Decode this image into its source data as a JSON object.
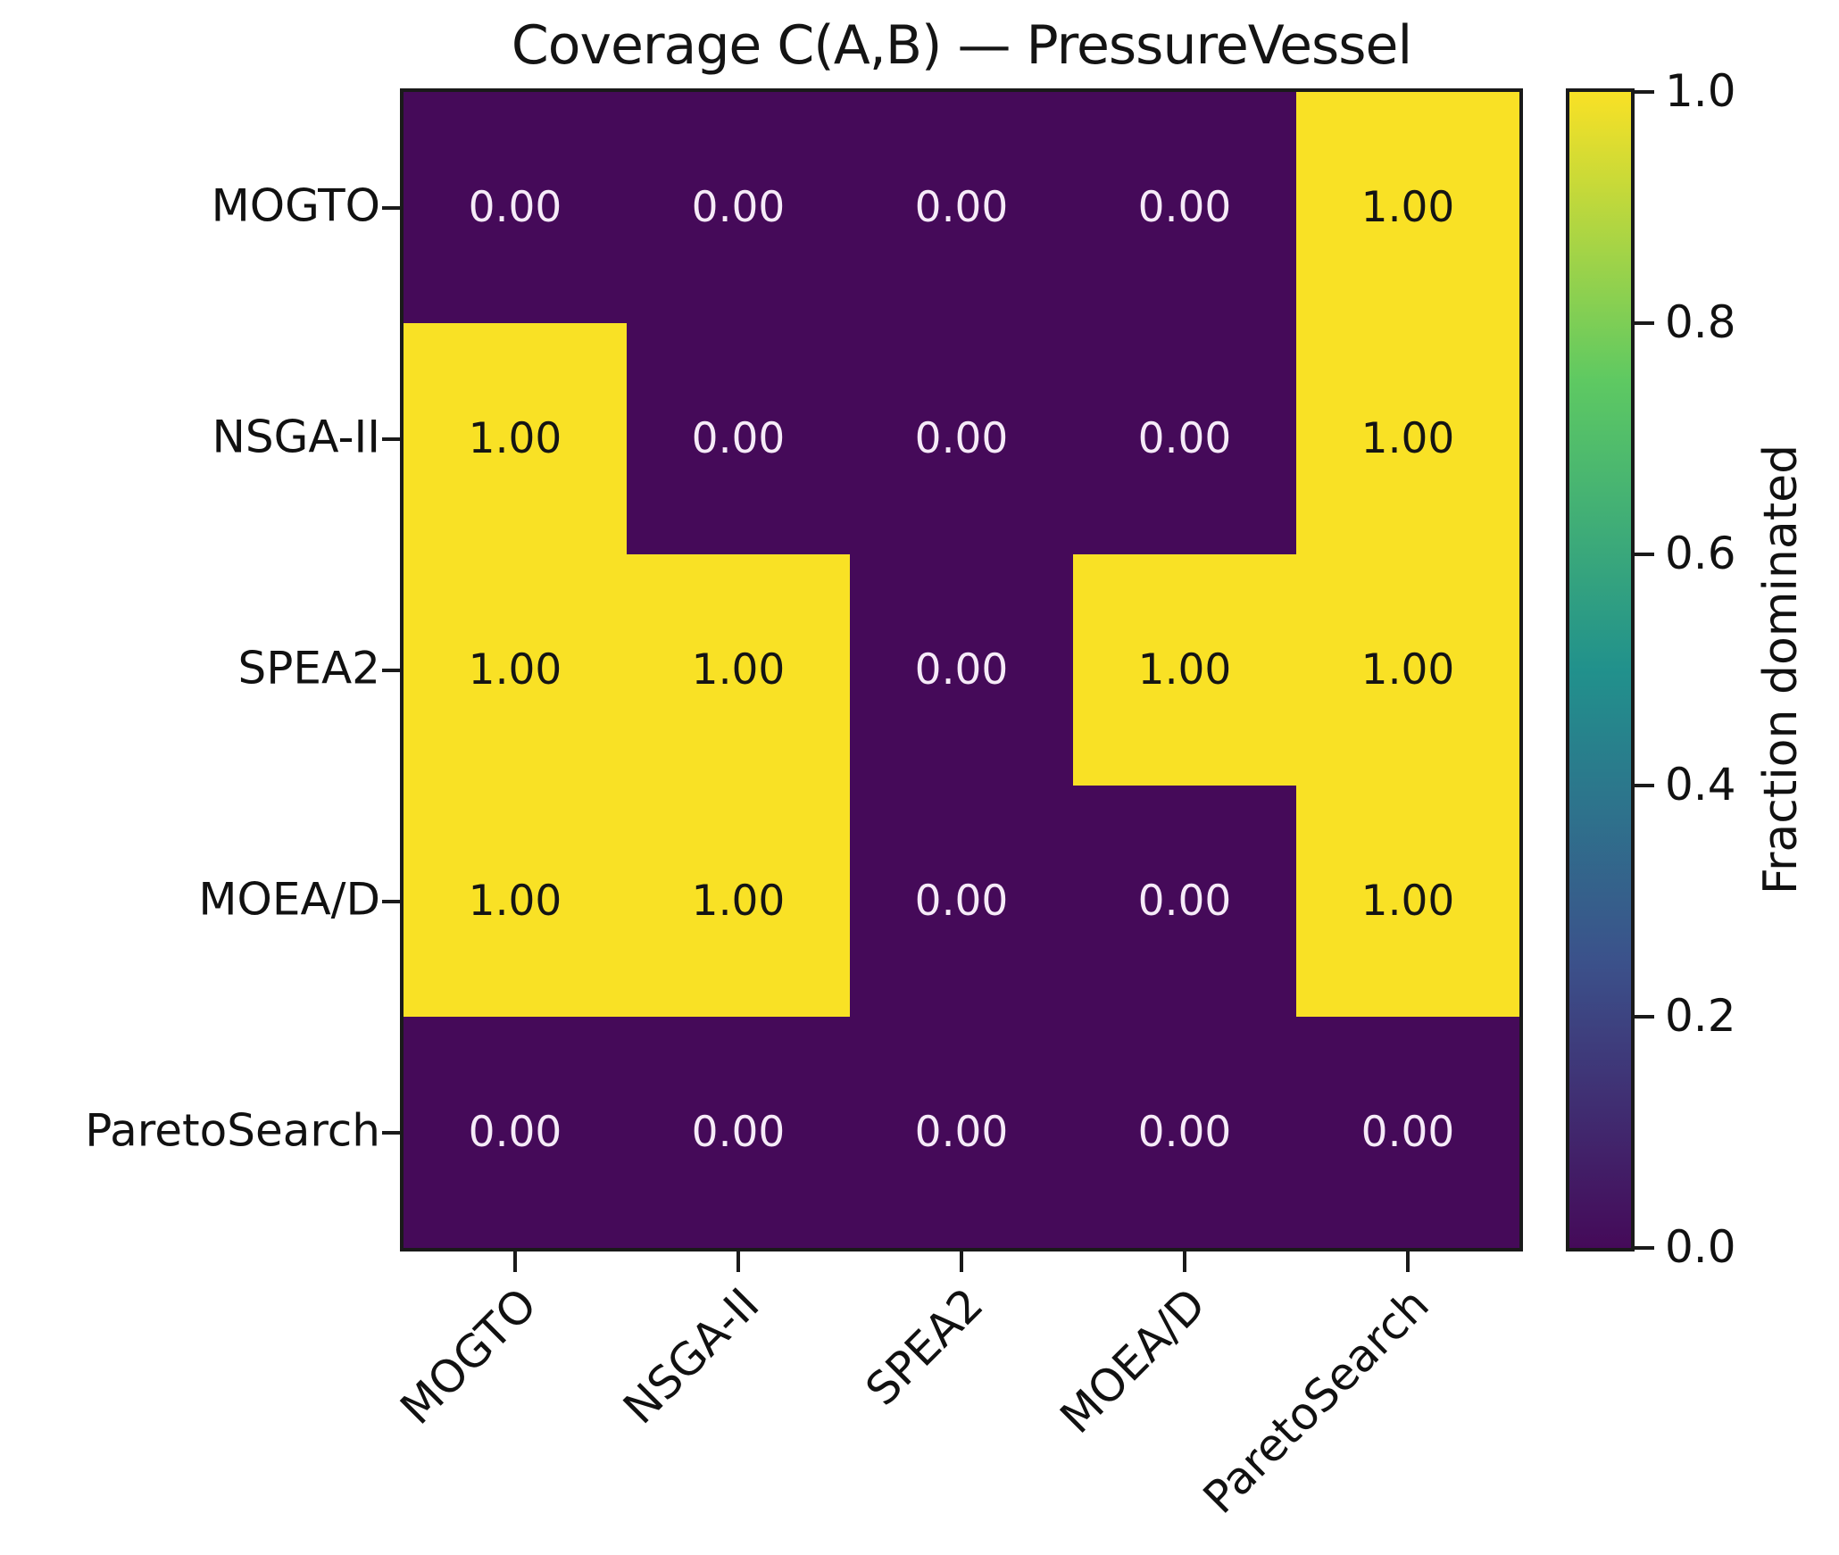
{
  "chart_data": {
    "type": "heatmap",
    "title": "Coverage C(A,B) — PressureVessel",
    "rows": [
      "MOGTO",
      "NSGA-II",
      "SPEA2",
      "MOEA/D",
      "ParetoSearch"
    ],
    "cols": [
      "MOGTO",
      "NSGA-II",
      "SPEA2",
      "MOEA/D",
      "ParetoSearch"
    ],
    "values": [
      [
        0.0,
        0.0,
        0.0,
        0.0,
        1.0
      ],
      [
        1.0,
        0.0,
        0.0,
        0.0,
        1.0
      ],
      [
        1.0,
        1.0,
        0.0,
        1.0,
        1.0
      ],
      [
        1.0,
        1.0,
        0.0,
        0.0,
        1.0
      ],
      [
        0.0,
        0.0,
        0.0,
        0.0,
        0.0
      ]
    ],
    "cell_labels": [
      [
        "0.00",
        "0.00",
        "0.00",
        "0.00",
        "1.00"
      ],
      [
        "1.00",
        "0.00",
        "0.00",
        "0.00",
        "1.00"
      ],
      [
        "1.00",
        "1.00",
        "0.00",
        "1.00",
        "1.00"
      ],
      [
        "1.00",
        "1.00",
        "0.00",
        "0.00",
        "1.00"
      ],
      [
        "0.00",
        "0.00",
        "0.00",
        "0.00",
        "0.00"
      ]
    ],
    "value_range": [
      0.0,
      1.0
    ],
    "colorbar": {
      "label": "Fraction dominated",
      "tick_labels": [
        "1.0",
        "0.8",
        "0.6",
        "0.4",
        "0.2",
        "0.0"
      ],
      "tick_values": [
        1.0,
        0.8,
        0.6,
        0.4,
        0.2,
        0.0
      ],
      "position": "right",
      "colormap": "viridis",
      "gradient_stops": [
        "#450a59",
        "#3b528b",
        "#21918c",
        "#5ec962",
        "#f9e125"
      ]
    },
    "colors": {
      "cell_low": "#450a59",
      "cell_high": "#f9e125",
      "text_on_low": "#f6ebf8",
      "text_on_high": "#141414",
      "axis": "#1a1a1a"
    },
    "layout": {
      "grid": "off",
      "x_label_rotation_deg": 45,
      "cell_value_threshold": 0.5
    }
  }
}
